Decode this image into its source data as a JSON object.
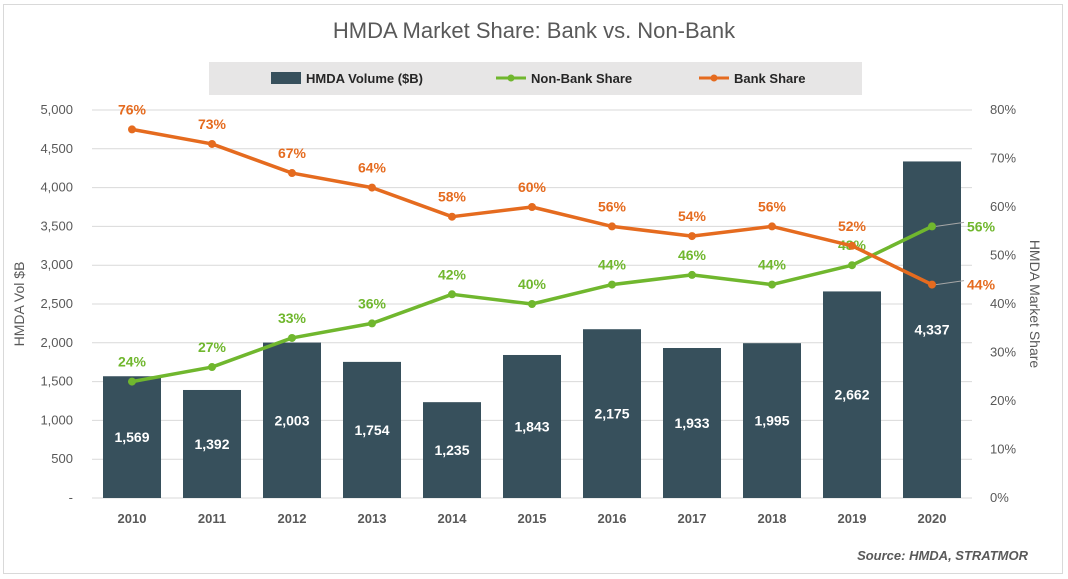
{
  "chart_data": {
    "type": "bar",
    "title": "HMDA Market Share: Bank vs. Non-Bank",
    "categories": [
      "2010",
      "2011",
      "2012",
      "2013",
      "2014",
      "2015",
      "2016",
      "2017",
      "2018",
      "2019",
      "2020"
    ],
    "series": [
      {
        "name": "HMDA Volume ($B)",
        "type": "bar",
        "axis": "left",
        "color": "#37505c",
        "values": [
          1569,
          1392,
          2003,
          1754,
          1235,
          1843,
          2175,
          1933,
          1995,
          2662,
          4337
        ],
        "labels": [
          "1,569",
          "1,392",
          "2,003",
          "1,754",
          "1,235",
          "1,843",
          "2,175",
          "1,933",
          "1,995",
          "2,662",
          "4,337"
        ]
      },
      {
        "name": "Non-Bank Share",
        "type": "line",
        "axis": "right",
        "color": "#70b72e",
        "values": [
          24,
          27,
          33,
          36,
          42,
          40,
          44,
          46,
          44,
          48,
          56
        ],
        "labels": [
          "24%",
          "27%",
          "33%",
          "36%",
          "42%",
          "40%",
          "44%",
          "46%",
          "44%",
          "48%",
          "56%"
        ]
      },
      {
        "name": "Bank Share",
        "type": "line",
        "axis": "right",
        "color": "#e56b1f",
        "values": [
          76,
          73,
          67,
          64,
          58,
          60,
          56,
          54,
          56,
          52,
          44
        ],
        "labels": [
          "76%",
          "73%",
          "67%",
          "64%",
          "58%",
          "60%",
          "56%",
          "54%",
          "56%",
          "52%",
          "44%"
        ]
      }
    ],
    "ylabel": "HMDA Vol $B",
    "y2label": "HMDA Market Share",
    "ylim": [
      0,
      5000
    ],
    "y2lim": [
      0,
      80
    ],
    "yticks": [
      "-",
      "500",
      "1,000",
      "1,500",
      "2,000",
      "2,500",
      "3,000",
      "3,500",
      "4,000",
      "4,500",
      "5,000"
    ],
    "y2ticks": [
      "0%",
      "10%",
      "20%",
      "30%",
      "40%",
      "50%",
      "60%",
      "70%",
      "80%"
    ],
    "grid": true,
    "legend_position": "top"
  },
  "source": "Source: HMDA, STRATMOR"
}
